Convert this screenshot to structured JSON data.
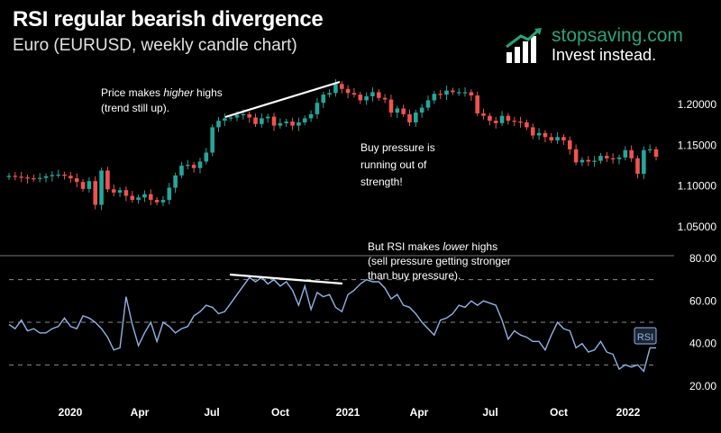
{
  "header": {
    "title": "RSI regular bearish divergence",
    "subtitle": "Euro (EURUSD, weekly candle chart)"
  },
  "brand": {
    "name": "stopsaving.com",
    "tagline": "Invest instead.",
    "logo_icon": "bar-chart-arrow-icon",
    "color": "#2aa37c"
  },
  "annotations": {
    "price_line1_pre": "Price makes ",
    "price_line1_em": "higher",
    "price_line1_post": " highs",
    "price_line2": "(trend still up).",
    "buy_line1": "Buy pressure is",
    "buy_line2": "running out of",
    "buy_line3": "strength!",
    "rsi_line1_pre": "But RSI makes ",
    "rsi_line1_em": "lower",
    "rsi_line1_post": " highs",
    "rsi_line2": "(sell pressure getting stronger",
    "rsi_line3": "than buy pressure)."
  },
  "colors": {
    "up": "#26a69a",
    "down": "#ef5350",
    "rsi": "#8fb3e6",
    "trendline": "#ffffff",
    "guide": "#8c8c8c"
  },
  "chart_data": [
    {
      "type": "candlestick",
      "title": "Euro (EURUSD, weekly candle chart)",
      "x_tick_labels": [
        "2020",
        "Apr",
        "Jul",
        "Oct",
        "2021",
        "Apr",
        "Jul",
        "Oct",
        "2022"
      ],
      "y_tick_labels": [
        "1.20000",
        "1.15000",
        "1.10000",
        "1.05000"
      ],
      "ylim": [
        1.02,
        1.24
      ],
      "closes": [
        1.1125,
        1.1115,
        1.1105,
        1.1095,
        1.109,
        1.11,
        1.112,
        1.1135,
        1.114,
        1.1125,
        1.1095,
        1.105,
        1.0965,
        1.106,
        1.077,
        1.119,
        1.096,
        1.092,
        1.095,
        1.088,
        1.083,
        1.086,
        1.09,
        1.083,
        1.08,
        1.083,
        1.098,
        1.113,
        1.125,
        1.126,
        1.122,
        1.13,
        1.141,
        1.172,
        1.18,
        1.183,
        1.184,
        1.187,
        1.188,
        1.184,
        1.176,
        1.183,
        1.185,
        1.174,
        1.177,
        1.179,
        1.174,
        1.178,
        1.183,
        1.188,
        1.202,
        1.212,
        1.214,
        1.225,
        1.219,
        1.214,
        1.212,
        1.205,
        1.21,
        1.215,
        1.208,
        1.206,
        1.19,
        1.195,
        1.188,
        1.178,
        1.19,
        1.196,
        1.205,
        1.213,
        1.212,
        1.217,
        1.215,
        1.215,
        1.215,
        1.211,
        1.189,
        1.186,
        1.18,
        1.177,
        1.186,
        1.18,
        1.179,
        1.178,
        1.172,
        1.162,
        1.165,
        1.16,
        1.156,
        1.16,
        1.156,
        1.145,
        1.129,
        1.132,
        1.13,
        1.131,
        1.137,
        1.134,
        1.133,
        1.135,
        1.144,
        1.134,
        1.115,
        1.144,
        1.145,
        1.136
      ]
    },
    {
      "type": "line",
      "series": [
        {
          "name": "RSI",
          "values": [
            49,
            47,
            51,
            46,
            47,
            45,
            45,
            47,
            48,
            52,
            48,
            47,
            53,
            52,
            50,
            47,
            43,
            37,
            38,
            62,
            49,
            39,
            45,
            50,
            41,
            50,
            48,
            45,
            47,
            48,
            53,
            55,
            58,
            57,
            54,
            55,
            59,
            63,
            67,
            71,
            69,
            71,
            68,
            70,
            67,
            69,
            65,
            58,
            67,
            56,
            64,
            62,
            63,
            57,
            55,
            63,
            65,
            68,
            70,
            69,
            69,
            66,
            61,
            63,
            58,
            57,
            54,
            50,
            47,
            44,
            51,
            52,
            54,
            58,
            57,
            60,
            58,
            60,
            59,
            58,
            51,
            42,
            46,
            44,
            43,
            41,
            41,
            37,
            44,
            50,
            47,
            46,
            38,
            40,
            36,
            37,
            41,
            36,
            35,
            28,
            30,
            29,
            30,
            27,
            38,
            38
          ]
        }
      ],
      "y_tick_labels": [
        "80.00",
        "60.00",
        "40.00",
        "20.00"
      ],
      "ylim": [
        17,
        80
      ],
      "reference_lines": [
        70,
        50,
        30
      ],
      "series_label": "RSI"
    }
  ]
}
